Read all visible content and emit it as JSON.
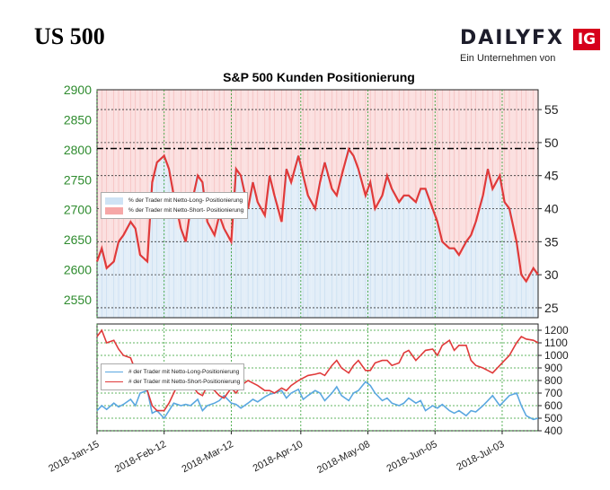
{
  "header": {
    "title": "US 500",
    "logo_word": "DAILYFX",
    "logo_badge": "IG",
    "logo_subtitle": "Ein Unternehmen von"
  },
  "colors": {
    "price_axis": "#2e8b2e",
    "long": "#5aa7e0",
    "short": "#e03a3a",
    "short_fill": "#fbe0e0",
    "long_fill": "#e3eef8",
    "candle_up": "#2f9e2f",
    "candle_down": "#1a1a1a"
  },
  "chart_data": [
    {
      "type": "line",
      "title": "S&P 500 Kunden Positionierung",
      "x_tick_labels": [
        "2018-Jan-15",
        "2018-Feb-12",
        "2018-Mar-12",
        "2018-Apr-10",
        "2018-May-08",
        "2018-Jun-05",
        "2018-Jul-03"
      ],
      "x_range": [
        "2018-Jan-15",
        "2018-Jul-18"
      ],
      "y_left": {
        "ticks": [
          2550,
          2600,
          2650,
          2700,
          2750,
          2800,
          2850,
          2900
        ],
        "range": [
          2520,
          2900
        ]
      },
      "y_right": {
        "ticks": [
          25,
          30,
          35,
          40,
          45,
          50,
          55
        ],
        "range": [
          23.5,
          58
        ]
      },
      "reference_line": {
        "value": 2802,
        "style": "dash-dot"
      },
      "legend_position": "left",
      "legend": [
        "% der Trader mit Netto-Long- Positionierung",
        "% der Trader mit Netto-Short- Positionierung"
      ],
      "series": [
        {
          "name": "% der Trader mit Netto-Short- Positionierung",
          "axis": "right",
          "x": [
            "2018-01-15",
            "2018-01-17",
            "2018-01-19",
            "2018-01-22",
            "2018-01-24",
            "2018-01-26",
            "2018-01-29",
            "2018-01-31",
            "2018-02-02",
            "2018-02-05",
            "2018-02-07",
            "2018-02-09",
            "2018-02-12",
            "2018-02-14",
            "2018-02-16",
            "2018-02-19",
            "2018-02-21",
            "2018-02-23",
            "2018-02-26",
            "2018-02-28",
            "2018-03-02",
            "2018-03-05",
            "2018-03-07",
            "2018-03-09",
            "2018-03-12",
            "2018-03-14",
            "2018-03-16",
            "2018-03-19",
            "2018-03-21",
            "2018-03-23",
            "2018-03-26",
            "2018-03-28",
            "2018-03-30",
            "2018-04-02",
            "2018-04-04",
            "2018-04-06",
            "2018-04-09",
            "2018-04-11",
            "2018-04-13",
            "2018-04-16",
            "2018-04-18",
            "2018-04-20",
            "2018-04-23",
            "2018-04-25",
            "2018-04-27",
            "2018-04-30",
            "2018-05-02",
            "2018-05-04",
            "2018-05-07",
            "2018-05-09",
            "2018-05-11",
            "2018-05-14",
            "2018-05-16",
            "2018-05-18",
            "2018-05-21",
            "2018-05-23",
            "2018-05-25",
            "2018-05-28",
            "2018-05-30",
            "2018-06-01",
            "2018-06-04",
            "2018-06-06",
            "2018-06-08",
            "2018-06-11",
            "2018-06-13",
            "2018-06-15",
            "2018-06-18",
            "2018-06-20",
            "2018-06-22",
            "2018-06-25",
            "2018-06-27",
            "2018-06-29",
            "2018-07-02",
            "2018-07-04",
            "2018-07-06",
            "2018-07-09",
            "2018-07-11",
            "2018-07-13",
            "2018-07-16",
            "2018-07-18"
          ],
          "values": [
            32,
            34,
            31,
            32,
            35,
            36,
            38,
            37,
            33,
            32,
            44,
            47,
            48,
            46,
            42,
            37,
            35,
            40,
            45,
            44,
            38,
            36,
            39,
            37,
            35,
            46,
            45,
            40,
            44,
            41,
            39,
            45,
            42,
            38,
            46,
            44,
            48,
            45,
            42,
            40,
            44,
            47,
            43,
            42,
            45,
            49,
            48,
            46,
            42,
            44,
            40,
            42,
            45,
            43,
            41,
            42,
            42,
            41,
            43,
            43,
            40,
            38,
            35,
            34,
            34,
            33,
            35,
            36,
            38,
            42,
            46,
            43,
            45,
            41,
            40,
            35,
            30,
            29,
            31,
            30
          ]
        }
      ]
    },
    {
      "type": "line",
      "y_ticks": [
        400,
        500,
        600,
        700,
        800,
        900,
        1000,
        1100,
        1200
      ],
      "y_range": [
        400,
        1250
      ],
      "legend_position": "left",
      "legend": [
        "# der Trader mit Netto-Long-Positionierung",
        "# der Trader mit Netto-Short-Positionierung"
      ],
      "series": [
        {
          "name": "# der Trader mit Netto-Long-Positionierung",
          "values": [
            560,
            600,
            570,
            620,
            590,
            610,
            650,
            600,
            700,
            720,
            540,
            560,
            500,
            560,
            620,
            600,
            610,
            600,
            650,
            560,
            600,
            620,
            640,
            680,
            620,
            610,
            580,
            620,
            650,
            630,
            670,
            690,
            700,
            720,
            660,
            700,
            730,
            650,
            680,
            720,
            700,
            640,
            700,
            750,
            680,
            640,
            700,
            720,
            790,
            760,
            700,
            640,
            660,
            620,
            600,
            620,
            660,
            620,
            640,
            560,
            600,
            580,
            610,
            560,
            540,
            560,
            520,
            560,
            550,
            600,
            640,
            680,
            600,
            640,
            680,
            700,
            600,
            520,
            490,
            500
          ]
        },
        {
          "name": "# der Trader mit Netto-Short-Positionierung",
          "values": [
            1150,
            1200,
            1100,
            1120,
            1050,
            1000,
            980,
            880,
            760,
            720,
            600,
            560,
            560,
            620,
            700,
            820,
            830,
            780,
            700,
            680,
            760,
            720,
            680,
            660,
            740,
            700,
            760,
            800,
            780,
            760,
            720,
            720,
            700,
            740,
            720,
            760,
            800,
            820,
            840,
            850,
            860,
            840,
            920,
            960,
            900,
            860,
            920,
            960,
            880,
            880,
            940,
            960,
            960,
            920,
            940,
            1020,
            1040,
            960,
            1000,
            1040,
            1050,
            1000,
            1080,
            1120,
            1040,
            1080,
            1080,
            960,
            920,
            900,
            880,
            860,
            920,
            960,
            1000,
            1100,
            1150,
            1130,
            1120,
            1100
          ]
        }
      ]
    }
  ]
}
